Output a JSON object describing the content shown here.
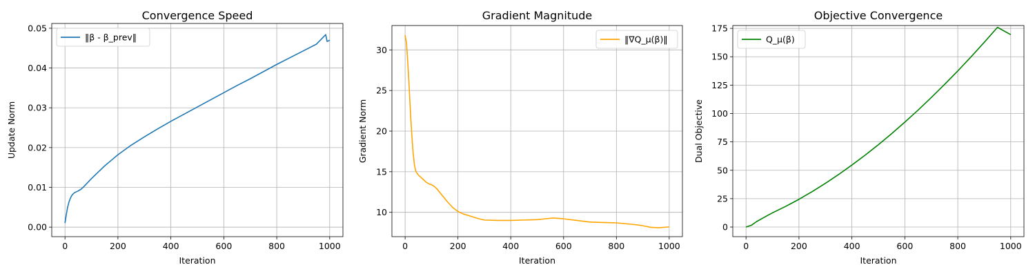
{
  "chart_data": [
    {
      "type": "line",
      "title": "Convergence Speed",
      "xlabel": "Iteration",
      "ylabel": "Update Norm",
      "xlim": [
        -50,
        1050
      ],
      "ylim": [
        -0.0024,
        0.0512
      ],
      "xticks": [
        0,
        200,
        400,
        600,
        800,
        1000
      ],
      "xtick_labels": [
        "0",
        "200",
        "400",
        "600",
        "800",
        "1000"
      ],
      "yticks": [
        0.0,
        0.01,
        0.02,
        0.03,
        0.04,
        0.05
      ],
      "ytick_labels": [
        "0.00",
        "0.01",
        "0.02",
        "0.03",
        "0.04",
        "0.05"
      ],
      "grid": true,
      "legend_position": "upper-left",
      "series": [
        {
          "name": "‖β - β_prev‖",
          "color": "#1f77b4",
          "x": [
            0,
            5,
            10,
            15,
            20,
            25,
            30,
            35,
            40,
            50,
            60,
            70,
            80,
            100,
            125,
            150,
            175,
            200,
            250,
            300,
            350,
            400,
            450,
            500,
            550,
            600,
            650,
            700,
            750,
            800,
            850,
            900,
            950,
            985,
            990,
            995,
            1000
          ],
          "y": [
            0.001,
            0.0032,
            0.005,
            0.0063,
            0.0072,
            0.0079,
            0.0083,
            0.0086,
            0.0088,
            0.0091,
            0.0095,
            0.0101,
            0.0108,
            0.0122,
            0.0138,
            0.0154,
            0.0168,
            0.0182,
            0.0206,
            0.0227,
            0.0247,
            0.0266,
            0.0284,
            0.0302,
            0.032,
            0.0338,
            0.0356,
            0.0373,
            0.0391,
            0.0409,
            0.0426,
            0.0443,
            0.046,
            0.0484,
            0.0467,
            0.0468,
            0.047
          ]
        }
      ]
    },
    {
      "type": "line",
      "title": "Gradient Magnitude",
      "xlabel": "Iteration",
      "ylabel": "Gradient Norm",
      "xlim": [
        -50,
        1050
      ],
      "ylim": [
        7.0,
        33.0
      ],
      "xticks": [
        0,
        200,
        400,
        600,
        800,
        1000
      ],
      "xtick_labels": [
        "0",
        "200",
        "400",
        "600",
        "800",
        "1000"
      ],
      "yticks": [
        10,
        15,
        20,
        25,
        30
      ],
      "ytick_labels": [
        "10",
        "15",
        "20",
        "25",
        "30"
      ],
      "grid": true,
      "legend_position": "upper-right",
      "series": [
        {
          "name": "‖∇Q_μ(β)‖",
          "color": "#ffa500",
          "x": [
            0,
            5,
            10,
            15,
            20,
            25,
            30,
            35,
            40,
            45,
            50,
            60,
            70,
            80,
            90,
            100,
            110,
            120,
            130,
            140,
            150,
            160,
            180,
            200,
            220,
            240,
            260,
            280,
            300,
            350,
            400,
            450,
            500,
            530,
            560,
            600,
            650,
            700,
            750,
            800,
            850,
            880,
            900,
            930,
            960,
            1000
          ],
          "y": [
            31.8,
            30.9,
            28.5,
            25.6,
            22.4,
            19.7,
            17.4,
            15.9,
            15.1,
            14.8,
            14.6,
            14.3,
            14.0,
            13.7,
            13.5,
            13.4,
            13.2,
            12.9,
            12.5,
            12.1,
            11.7,
            11.3,
            10.6,
            10.1,
            9.8,
            9.6,
            9.4,
            9.2,
            9.05,
            9.0,
            9.0,
            9.05,
            9.1,
            9.2,
            9.3,
            9.2,
            9.0,
            8.8,
            8.75,
            8.7,
            8.55,
            8.45,
            8.35,
            8.15,
            8.1,
            8.2
          ]
        }
      ]
    },
    {
      "type": "line",
      "title": "Objective Convergence",
      "xlabel": "Iteration",
      "ylabel": "Dual Objective",
      "xlim": [
        -50,
        1050
      ],
      "ylim": [
        -8.5,
        177.5
      ],
      "xticks": [
        0,
        200,
        400,
        600,
        800,
        1000
      ],
      "xtick_labels": [
        "0",
        "200",
        "400",
        "600",
        "800",
        "1000"
      ],
      "yticks": [
        0,
        25,
        50,
        75,
        100,
        125,
        150,
        175
      ],
      "ytick_labels": [
        "0",
        "25",
        "50",
        "75",
        "100",
        "125",
        "150",
        "175"
      ],
      "grid": true,
      "legend_position": "upper-left",
      "series": [
        {
          "name": "Q_μ(β)",
          "color": "#008000",
          "x": [
            0,
            20,
            40,
            60,
            80,
            100,
            150,
            200,
            250,
            300,
            350,
            400,
            450,
            500,
            550,
            600,
            650,
            700,
            750,
            800,
            850,
            900,
            950,
            1000
          ],
          "y": [
            0,
            1.5,
            4.8,
            7.4,
            10.0,
            12.5,
            18.2,
            24.4,
            31.2,
            38.5,
            46.3,
            54.6,
            63.3,
            72.5,
            82.2,
            92.4,
            103.0,
            114.1,
            125.6,
            137.5,
            149.9,
            162.7,
            175.9,
            169.5
          ]
        }
      ]
    }
  ]
}
